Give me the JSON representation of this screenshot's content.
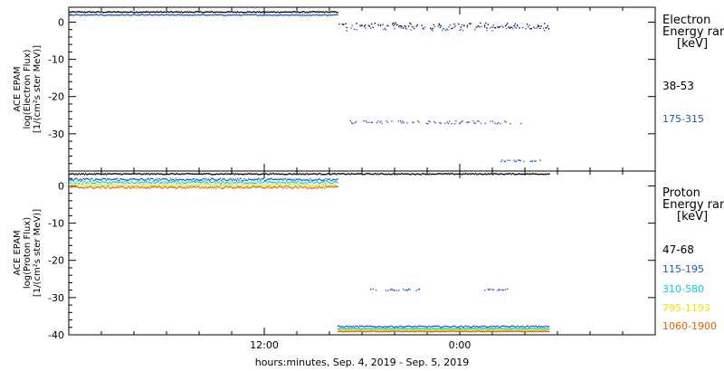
{
  "chart_data": [
    {
      "type": "scatter",
      "panel": "electron",
      "ylabel": [
        "ACE EPAM",
        "log(Electron Flux)",
        "[1/(cm²s ster MeV)]"
      ],
      "ylim": [
        -40,
        4
      ],
      "yticks": [
        0,
        -10,
        -20,
        -30
      ],
      "legend_title": [
        "Electron",
        "Energy ran",
        "[keV]"
      ],
      "series": [
        {
          "name": "38-53",
          "color": "#000000",
          "segments": [
            {
              "x": [
                0.0,
                16.5
              ],
              "y": 2.7,
              "jitter": 0.15
            },
            {
              "x": [
                16.5,
                29.5
              ],
              "y": -1.0,
              "jitter": 0.8,
              "sparse": true
            }
          ]
        },
        {
          "name": "175-315",
          "color": "#1a56c8",
          "segments": [
            {
              "x": [
                0.0,
                16.5
              ],
              "y": 1.9,
              "jitter": 0.15
            },
            {
              "x": [
                16.5,
                29.5
              ],
              "y": -1.5,
              "jitter": 0.8,
              "sparse": true
            },
            {
              "x": [
                17.0,
                27.8
              ],
              "y": -26.9,
              "jitter": 0.4,
              "sparse": true
            },
            {
              "x": [
                26.5,
                29.0
              ],
              "y": -37.3,
              "jitter": 0.2,
              "sparse": true
            }
          ]
        }
      ]
    },
    {
      "type": "scatter",
      "panel": "proton",
      "ylabel": [
        "ACE EPAM",
        "log(Proton Flux)",
        "[1/(cm²s ster MeV)]"
      ],
      "ylim": [
        -40,
        4
      ],
      "yticks": [
        0,
        -10,
        -20,
        -30,
        -40
      ],
      "legend_title": [
        "Proton",
        "Energy ran",
        "[keV]"
      ],
      "series": [
        {
          "name": "47-68",
          "color": "#000000",
          "segments": [
            {
              "x": [
                0.0,
                29.5
              ],
              "y": 3.2,
              "jitter": 0.15
            }
          ]
        },
        {
          "name": "115-195",
          "color": "#1a56c8",
          "segments": [
            {
              "x": [
                0.0,
                16.5
              ],
              "y": 1.7,
              "jitter": 0.3
            },
            {
              "x": [
                16.5,
                29.5
              ],
              "y": -37.8,
              "jitter": 0.2
            },
            {
              "x": [
                18.5,
                21.5
              ],
              "y": -27.9,
              "jitter": 0.2,
              "sparse": true
            },
            {
              "x": [
                25.5,
                27.0
              ],
              "y": -27.9,
              "jitter": 0.2,
              "sparse": true
            }
          ]
        },
        {
          "name": "310-580",
          "color": "#00d0e0",
          "segments": [
            {
              "x": [
                0.0,
                16.5
              ],
              "y": 0.9,
              "jitter": 0.3
            },
            {
              "x": [
                16.5,
                29.5
              ],
              "y": -38.4,
              "jitter": 0.1
            }
          ]
        },
        {
          "name": "795-1193",
          "color": "#e8e800",
          "segments": [
            {
              "x": [
                0.0,
                16.5
              ],
              "y": 0.2,
              "jitter": 0.3
            },
            {
              "x": [
                16.5,
                29.5
              ],
              "y": -38.8,
              "jitter": 0.1
            }
          ]
        },
        {
          "name": "1060-1900",
          "color": "#e86000",
          "segments": [
            {
              "x": [
                0.0,
                16.5
              ],
              "y": -0.4,
              "jitter": 0.3
            },
            {
              "x": [
                16.5,
                29.5
              ],
              "y": -39.1,
              "jitter": 0.1
            }
          ]
        }
      ]
    }
  ],
  "xaxis": {
    "range_hours": [
      0,
      36
    ],
    "major_tick_labels": [
      {
        "hour": 12,
        "label": "12:00"
      },
      {
        "hour": 24,
        "label": "0:00"
      }
    ],
    "minor_tick_hours": [
      2,
      4,
      6,
      8,
      10,
      14,
      16,
      18,
      20,
      22,
      26,
      28,
      30,
      32,
      34
    ],
    "xlabel": "hours:minutes, Sep.  4, 2019 - Sep.  5, 2019"
  }
}
